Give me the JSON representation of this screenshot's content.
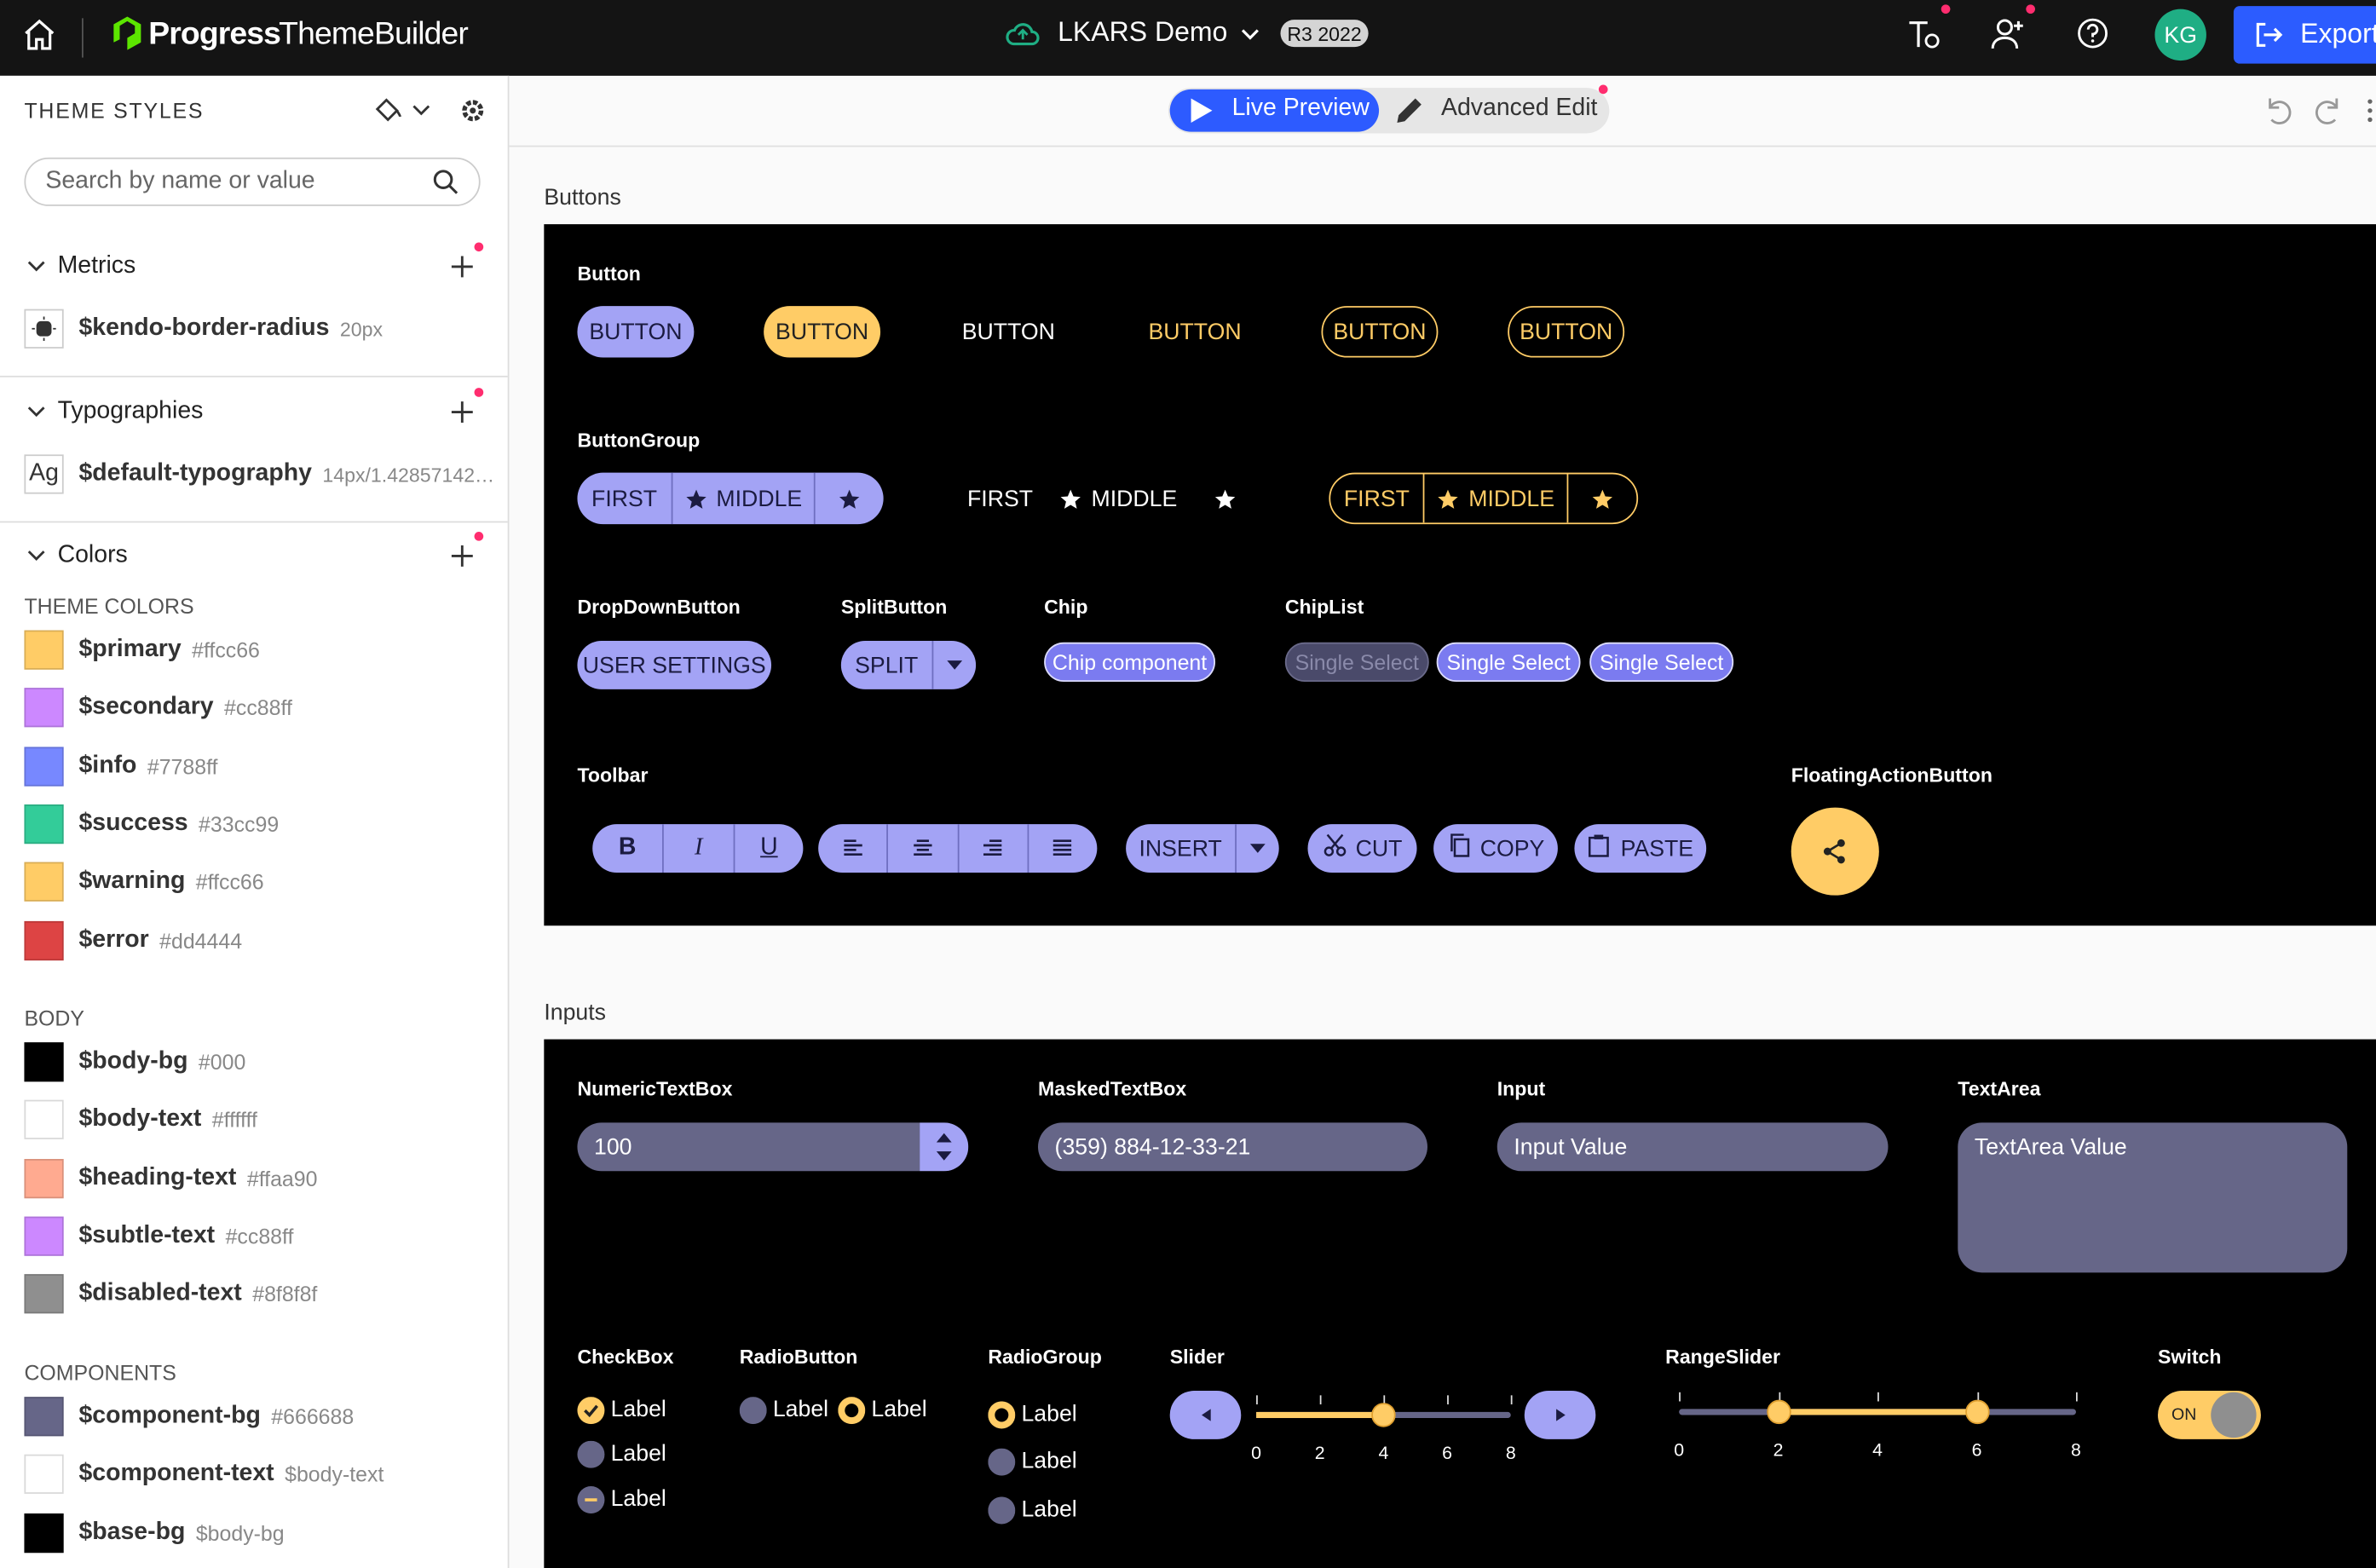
{
  "header": {
    "brand": "Progress",
    "product": "ThemeBuilder",
    "project": "LKARS Demo",
    "version": "R3 2022",
    "avatar": "KG",
    "export": "Export"
  },
  "mode": {
    "live": "Live Preview",
    "advanced": "Advanced Edit"
  },
  "sidebar": {
    "title": "THEME STYLES",
    "search": "Search by name or value",
    "metrics": {
      "title": "Metrics",
      "items": [
        {
          "name": "$kendo-border-radius",
          "value": "20px"
        }
      ]
    },
    "typographies": {
      "title": "Typographies",
      "items": [
        {
          "icon": "Ag",
          "name": "$default-typography",
          "value": "14px/1.42857142…"
        }
      ]
    },
    "colors": {
      "title": "Colors",
      "groups": [
        {
          "title": "THEME COLORS",
          "items": [
            {
              "name": "$primary",
              "value": "#ffcc66",
              "color": "#ffcc66"
            },
            {
              "name": "$secondary",
              "value": "#cc88ff",
              "color": "#cc88ff"
            },
            {
              "name": "$info",
              "value": "#7788ff",
              "color": "#7788ff"
            },
            {
              "name": "$success",
              "value": "#33cc99",
              "color": "#33cc99"
            },
            {
              "name": "$warning",
              "value": "#ffcc66",
              "color": "#ffcc66"
            },
            {
              "name": "$error",
              "value": "#dd4444",
              "color": "#dd4444"
            }
          ]
        },
        {
          "title": "BODY",
          "items": [
            {
              "name": "$body-bg",
              "value": "#000",
              "color": "#000000"
            },
            {
              "name": "$body-text",
              "value": "#ffffff",
              "color": "#ffffff"
            },
            {
              "name": "$heading-text",
              "value": "#ffaa90",
              "color": "#ffaa90"
            },
            {
              "name": "$subtle-text",
              "value": "#cc88ff",
              "color": "#cc88ff"
            },
            {
              "name": "$disabled-text",
              "value": "#8f8f8f",
              "color": "#8f8f8f"
            }
          ]
        },
        {
          "title": "COMPONENTS",
          "items": [
            {
              "name": "$component-bg",
              "value": "#666688",
              "color": "#666688"
            },
            {
              "name": "$component-text",
              "value": "$body-text",
              "color": "#ffffff"
            },
            {
              "name": "$base-bg",
              "value": "$body-bg",
              "color": "#000000"
            }
          ]
        }
      ]
    }
  },
  "buttons": {
    "title": "Buttons",
    "button": {
      "label": "Button",
      "items": [
        "BUTTON",
        "BUTTON",
        "BUTTON",
        "BUTTON",
        "BUTTON",
        "BUTTON"
      ]
    },
    "buttongroup": {
      "label": "ButtonGroup",
      "groups": [
        {
          "first": "FIRST",
          "middle": "MIDDLE"
        },
        {
          "first": "FIRST",
          "middle": "MIDDLE"
        },
        {
          "first": "FIRST",
          "middle": "MIDDLE"
        }
      ]
    },
    "dropdown": {
      "label": "DropDownButton",
      "text": "USER SETTINGS"
    },
    "split": {
      "label": "SplitButton",
      "text": "SPLIT"
    },
    "chip": {
      "label": "Chip",
      "text": "Chip component"
    },
    "chiplist": {
      "label": "ChipList",
      "items": [
        "Single Select",
        "Single Select",
        "Single Select"
      ]
    },
    "toolbar": {
      "label": "Toolbar",
      "bold": "B",
      "italic": "I",
      "underline": "U",
      "insert": "INSERT",
      "cut": "CUT",
      "copy": "COPY",
      "paste": "PASTE"
    },
    "fab": {
      "label": "FloatingActionButton"
    }
  },
  "inputs": {
    "title": "Inputs",
    "numeric": {
      "label": "NumericTextBox",
      "value": "100"
    },
    "masked": {
      "label": "MaskedTextBox",
      "value": "(359) 884-12-33-21"
    },
    "input": {
      "label": "Input",
      "value": "Input Value"
    },
    "textarea": {
      "label": "TextArea",
      "value": "TextArea Value"
    },
    "checkbox": {
      "label": "CheckBox",
      "items": [
        "Label",
        "Label",
        "Label"
      ]
    },
    "radio": {
      "label": "RadioButton",
      "items": [
        "Label",
        "Label"
      ]
    },
    "radiogroup": {
      "label": "RadioGroup",
      "items": [
        "Label",
        "Label",
        "Label"
      ]
    },
    "slider": {
      "label": "Slider",
      "ticks": [
        0,
        2,
        4,
        6,
        8
      ],
      "value": 4
    },
    "rangeslider": {
      "label": "RangeSlider",
      "ticks": [
        0,
        2,
        4,
        6,
        8
      ],
      "values": [
        2,
        6
      ]
    },
    "switch": {
      "label": "Switch",
      "text": "ON"
    }
  }
}
